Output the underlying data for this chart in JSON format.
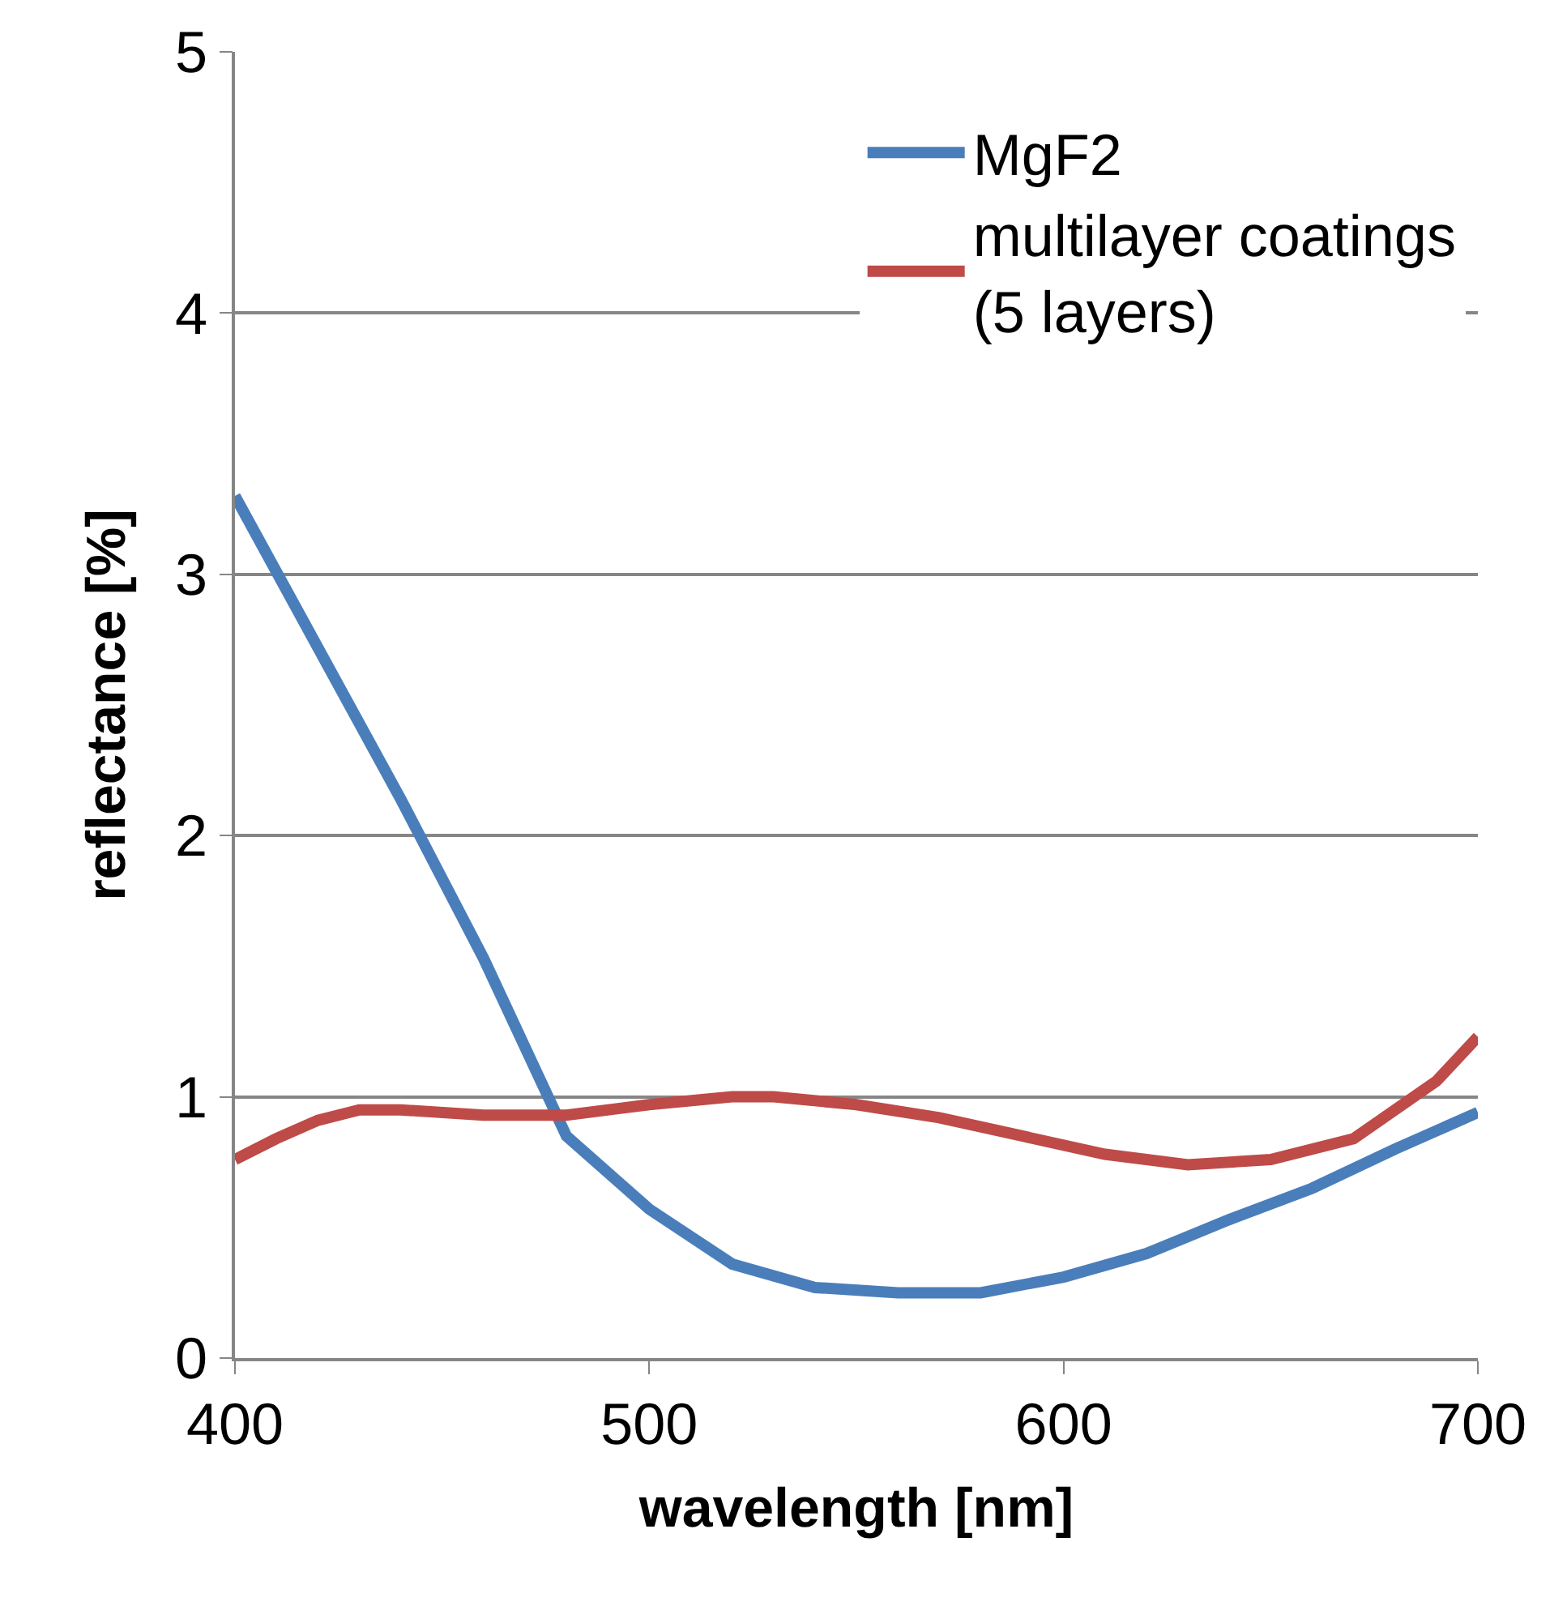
{
  "chart_data": {
    "type": "line",
    "xlabel": "wavelength [nm]",
    "ylabel": "reflectance [%]",
    "xlim": [
      400,
      700
    ],
    "xticks": [
      400,
      500,
      600,
      700
    ],
    "ylim": [
      0,
      5
    ],
    "yticks": [
      0,
      1,
      2,
      3,
      4,
      5
    ],
    "grid": "y",
    "legend": "top right",
    "marker": "none",
    "line_style": "solid",
    "series": [
      {
        "name": "MgF2",
        "color": "#4a7ebb",
        "x": [
          400,
          420,
          440,
          460,
          470,
          480,
          500,
          520,
          540,
          560,
          580,
          600,
          620,
          640,
          660,
          680,
          700
        ],
        "values": [
          3.3,
          2.72,
          2.14,
          1.53,
          1.19,
          0.85,
          0.57,
          0.36,
          0.27,
          0.25,
          0.25,
          0.31,
          0.4,
          0.53,
          0.65,
          0.8,
          0.94
        ]
      },
      {
        "name": "multilayer coatings\n(5 layers)",
        "color": "#be4b48",
        "x": [
          400,
          410,
          420,
          430,
          440,
          460,
          480,
          500,
          520,
          530,
          550,
          570,
          590,
          610,
          630,
          650,
          670,
          690,
          700
        ],
        "values": [
          0.76,
          0.84,
          0.91,
          0.95,
          0.95,
          0.93,
          0.93,
          0.97,
          1.0,
          1.0,
          0.97,
          0.92,
          0.85,
          0.78,
          0.74,
          0.76,
          0.84,
          1.06,
          1.23
        ]
      }
    ]
  }
}
